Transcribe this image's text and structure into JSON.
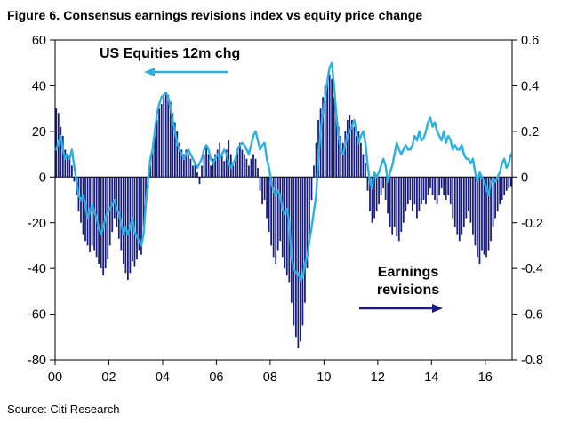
{
  "title": "Figure 6. Consensus earnings revisions index vs equity price change",
  "source": "Source: Citi Research",
  "colors": {
    "bar_navy": "#171c7e",
    "line_cyan": "#2ab1e2",
    "axis_black": "#000000",
    "background": "#ffffff"
  },
  "annotations": {
    "equities_label": "US Equities 12m chg",
    "earnings_label": "Earnings revisions"
  },
  "chart_data": {
    "type": "combo",
    "title": "Figure 6. Consensus earnings revisions index vs equity price change",
    "x_unit": "monthly",
    "x_start_year": 2000,
    "x_end_year": 2016,
    "x_tick_labels": [
      "00",
      "02",
      "04",
      "06",
      "08",
      "10",
      "12",
      "14",
      "16"
    ],
    "grid": false,
    "left_axis": {
      "title": "US Equities 12m change (%)",
      "range": [
        -80,
        60
      ],
      "ticks": [
        60,
        40,
        20,
        0,
        -20,
        -40,
        -60,
        -80
      ]
    },
    "right_axis": {
      "title": "Earnings revisions index",
      "range": [
        -0.8,
        0.6
      ],
      "ticks": [
        0.6,
        0.4,
        0.2,
        0,
        -0.2,
        -0.4,
        -0.6,
        -0.8
      ]
    },
    "series": [
      {
        "name": "Earnings revisions",
        "type": "bar",
        "axis": "right",
        "color": "#171c7e",
        "values": [
          0.3,
          0.28,
          0.22,
          0.18,
          0.12,
          0.1,
          0.08,
          0.05,
          -0.02,
          -0.08,
          -0.15,
          -0.2,
          -0.25,
          -0.28,
          -0.3,
          -0.33,
          -0.3,
          -0.32,
          -0.35,
          -0.38,
          -0.4,
          -0.43,
          -0.4,
          -0.36,
          -0.3,
          -0.24,
          -0.18,
          -0.22,
          -0.27,
          -0.32,
          -0.38,
          -0.42,
          -0.45,
          -0.42,
          -0.37,
          -0.39,
          -0.36,
          -0.32,
          -0.34,
          -0.22,
          -0.12,
          -0.05,
          0.05,
          0.12,
          0.18,
          0.25,
          0.3,
          0.32,
          0.35,
          0.37,
          0.36,
          0.33,
          0.28,
          0.24,
          0.2,
          0.15,
          0.12,
          0.1,
          0.12,
          0.1,
          0.08,
          0.05,
          0.06,
          0.02,
          -0.03,
          0.05,
          0.1,
          0.13,
          0.1,
          0.05,
          0.08,
          0.1,
          0.12,
          0.15,
          0.1,
          0.07,
          0.12,
          0.16,
          0.1,
          0.05,
          0.08,
          0.12,
          0.15,
          0.12,
          0.1,
          0.08,
          0.05,
          0.08,
          0.1,
          0.08,
          0.04,
          -0.06,
          -0.12,
          -0.1,
          -0.18,
          -0.24,
          -0.3,
          -0.35,
          -0.38,
          -0.32,
          -0.28,
          -0.35,
          -0.4,
          -0.43,
          -0.46,
          -0.55,
          -0.65,
          -0.7,
          -0.75,
          -0.72,
          -0.65,
          -0.55,
          -0.4,
          -0.25,
          -0.1,
          0.05,
          0.15,
          0.25,
          0.3,
          0.35,
          0.4,
          0.42,
          0.45,
          0.43,
          0.35,
          0.28,
          0.22,
          0.18,
          0.15,
          0.2,
          0.25,
          0.27,
          0.25,
          0.22,
          0.18,
          0.2,
          0.15,
          0.1,
          0.06,
          -0.06,
          -0.15,
          -0.2,
          -0.18,
          -0.15,
          -0.12,
          -0.08,
          -0.05,
          -0.1,
          -0.16,
          -0.22,
          -0.25,
          -0.22,
          -0.26,
          -0.28,
          -0.24,
          -0.2,
          -0.15,
          -0.12,
          -0.1,
          -0.15,
          -0.12,
          -0.18,
          -0.15,
          -0.12,
          -0.1,
          -0.12,
          -0.08,
          -0.05,
          -0.08,
          -0.1,
          -0.12,
          -0.08,
          -0.05,
          -0.08,
          -0.1,
          -0.08,
          -0.12,
          -0.18,
          -0.22,
          -0.25,
          -0.28,
          -0.25,
          -0.22,
          -0.18,
          -0.15,
          -0.2,
          -0.25,
          -0.3,
          -0.35,
          -0.38,
          -0.32,
          -0.34,
          -0.35,
          -0.32,
          -0.28,
          -0.22,
          -0.18,
          -0.15,
          -0.12,
          -0.1,
          -0.08,
          -0.06,
          -0.05,
          -0.04
        ]
      },
      {
        "name": "US Equities 12m chg",
        "type": "line",
        "axis": "left",
        "color": "#2ab1e2",
        "values": [
          12,
          15,
          18,
          12,
          8,
          10,
          8,
          12,
          5,
          -2,
          -8,
          -10,
          -8,
          -12,
          -18,
          -15,
          -12,
          -15,
          -18,
          -22,
          -25,
          -22,
          -18,
          -15,
          -14,
          -12,
          -10,
          -14,
          -16,
          -20,
          -25,
          -22,
          -25,
          -22,
          -18,
          -24,
          -26,
          -28,
          -30,
          -25,
          -12,
          -2,
          8,
          12,
          20,
          28,
          32,
          35,
          36,
          37,
          35,
          30,
          25,
          20,
          15,
          12,
          10,
          8,
          10,
          12,
          10,
          8,
          6,
          4,
          6,
          8,
          12,
          14,
          12,
          8,
          6,
          8,
          10,
          8,
          10,
          12,
          10,
          6,
          4,
          6,
          8,
          12,
          14,
          15,
          14,
          12,
          10,
          14,
          18,
          20,
          16,
          12,
          14,
          15,
          8,
          4,
          -2,
          -6,
          -8,
          -6,
          -8,
          -14,
          -16,
          -14,
          -20,
          -35,
          -40,
          -42,
          -42,
          -45,
          -44,
          -38,
          -35,
          -28,
          -22,
          -15,
          -8,
          8,
          20,
          28,
          35,
          42,
          48,
          50,
          40,
          28,
          18,
          12,
          10,
          14,
          18,
          20,
          22,
          25,
          20,
          15,
          18,
          20,
          15,
          5,
          -2,
          -5,
          2,
          0,
          2,
          5,
          8,
          5,
          -2,
          2,
          5,
          10,
          15,
          12,
          10,
          12,
          14,
          12,
          12,
          14,
          18,
          16,
          20,
          16,
          17,
          20,
          24,
          26,
          22,
          24,
          20,
          18,
          16,
          20,
          15,
          18,
          16,
          12,
          14,
          12,
          12,
          14,
          10,
          8,
          8,
          6,
          8,
          2,
          -2,
          2,
          0,
          -2,
          -5,
          -8,
          -2,
          -1,
          -2,
          0,
          2,
          6,
          8,
          4,
          6,
          10
        ]
      }
    ]
  }
}
